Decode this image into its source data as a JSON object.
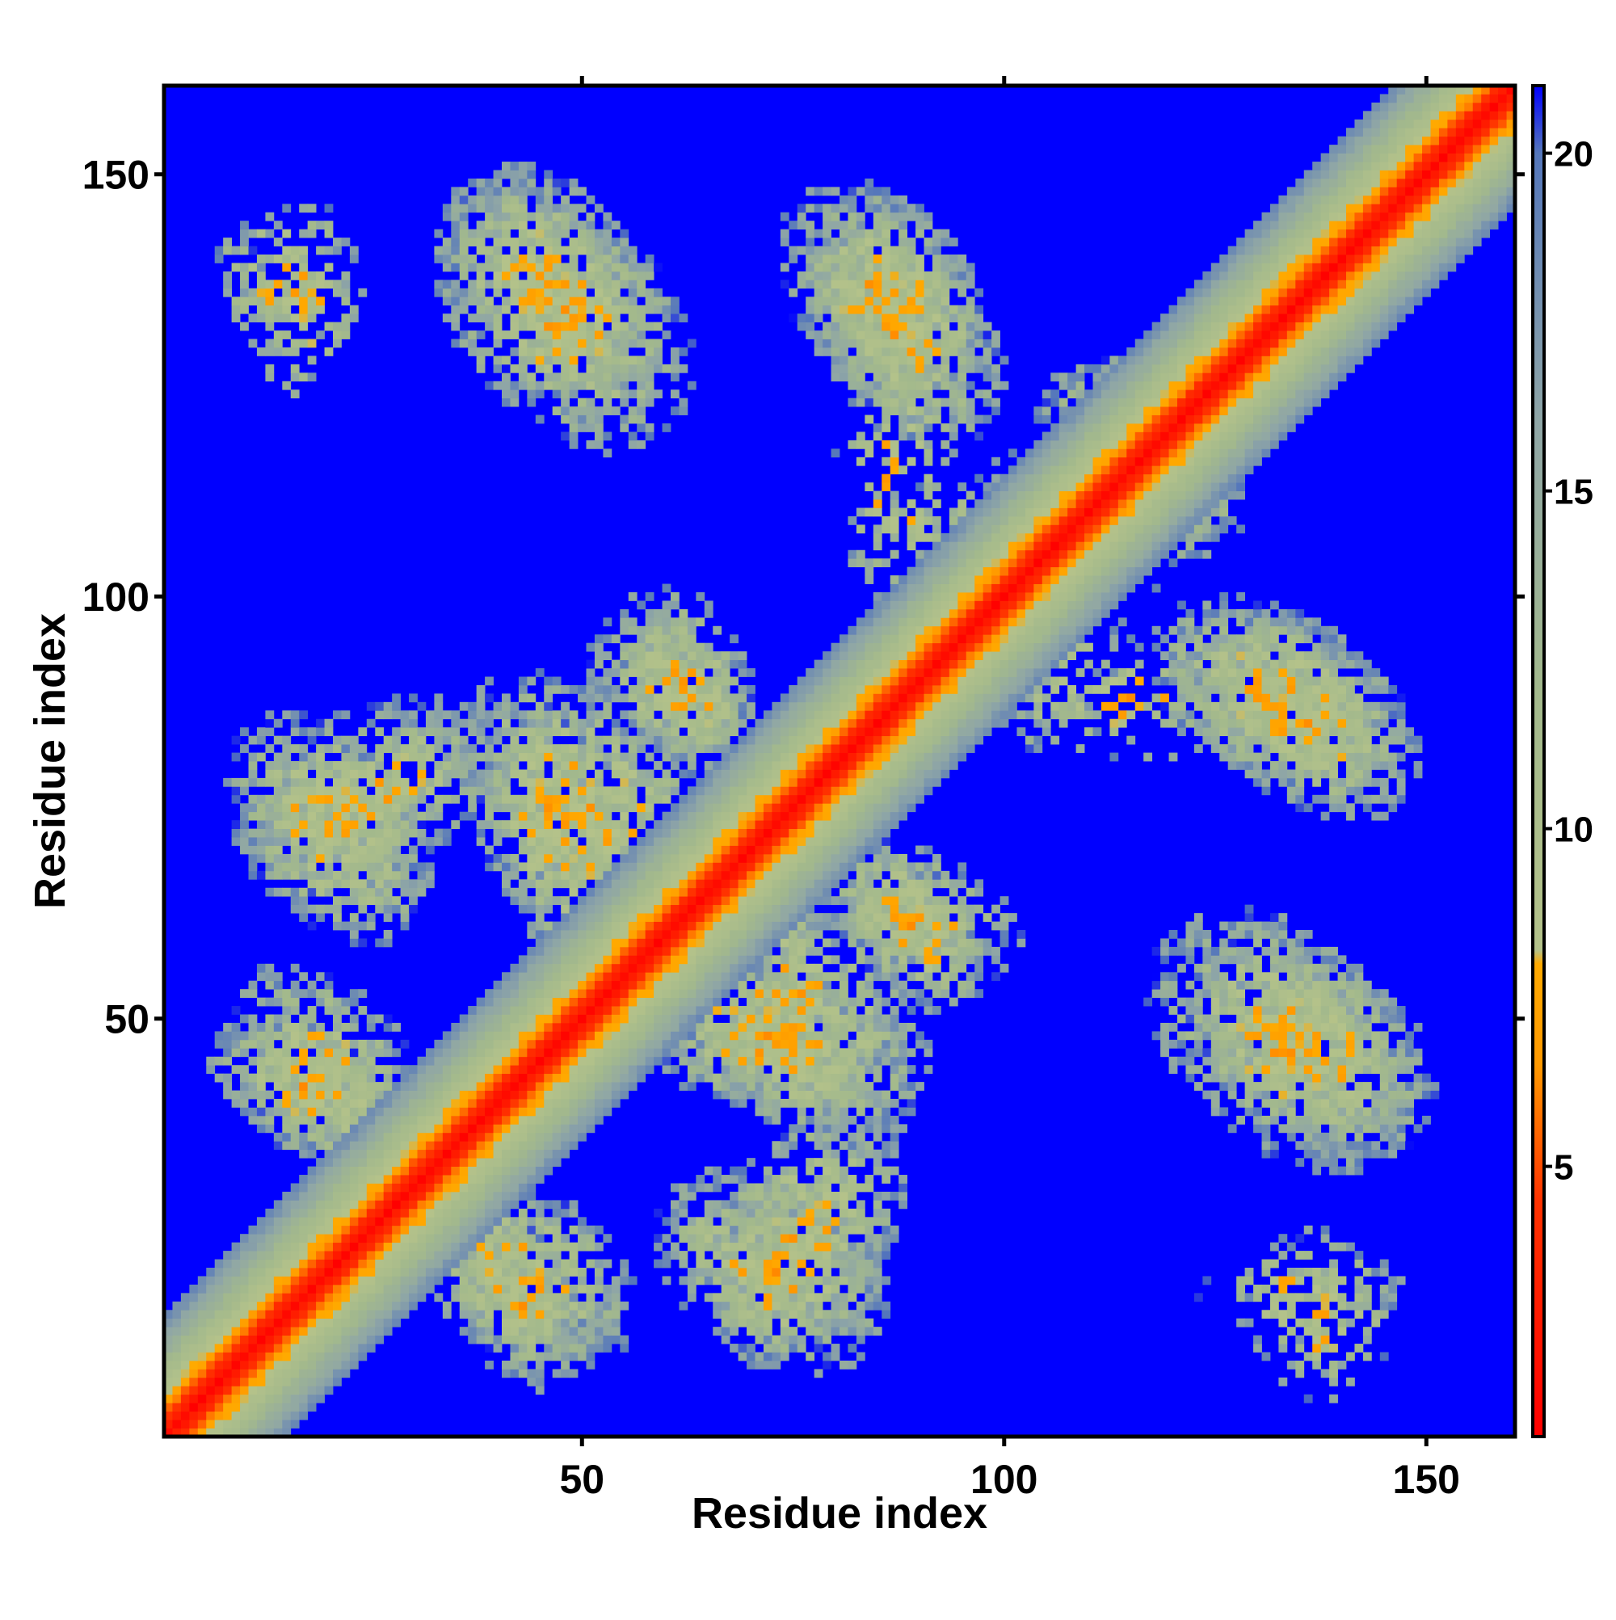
{
  "chart_data": {
    "type": "heatmap",
    "title": "",
    "xlabel": "Residue index",
    "ylabel": "Residue index",
    "n_residues": 160,
    "xlim": [
      1,
      160
    ],
    "ylim": [
      1,
      160
    ],
    "x_ticks": [
      50,
      100,
      150
    ],
    "y_ticks": [
      50,
      100,
      150
    ],
    "colorbar": {
      "range": [
        1,
        21
      ],
      "ticks": [
        5,
        10,
        15,
        20
      ],
      "stops": [
        {
          "value": 1,
          "color": "#ff0000"
        },
        {
          "value": 4.5,
          "color": "#ff3300"
        },
        {
          "value": 6.5,
          "color": "#ff9900"
        },
        {
          "value": 8,
          "color": "#ffaa00"
        },
        {
          "value": 8.2,
          "color": "#b4c28a"
        },
        {
          "value": 12,
          "color": "#a3b98c"
        },
        {
          "value": 16,
          "color": "#8fa6a6"
        },
        {
          "value": 20,
          "color": "#5577bb"
        },
        {
          "value": 21,
          "color": "#0000ff"
        }
      ]
    },
    "background_color": "#0000ff",
    "diagonal_band": {
      "core_width": 3,
      "band_halfwidth": 14
    },
    "contact_regions": [
      {
        "x": [
          30,
          63
        ],
        "y": [
          118,
          155
        ],
        "orientation": "anti"
      },
      {
        "x": [
          73,
          103
        ],
        "y": [
          113,
          152
        ],
        "orientation": "anti"
      },
      {
        "x": [
          117,
          153
        ],
        "y": [
          70,
          102
        ],
        "orientation": "anti"
      },
      {
        "x": [
          113,
          154
        ],
        "y": [
          28,
          67
        ],
        "orientation": "anti"
      },
      {
        "x": [
          5,
          44
        ],
        "y": [
          62,
          91
        ],
        "orientation": "parallel"
      },
      {
        "x": [
          30,
          72
        ],
        "y": [
          56,
          95
        ],
        "orientation": "anti"
      },
      {
        "x": [
          52,
          73
        ],
        "y": [
          75,
          105
        ],
        "orientation": "anti"
      },
      {
        "x": [
          78,
          100
        ],
        "y": [
          48,
          73
        ],
        "orientation": "anti"
      },
      {
        "x": [
          52,
          92
        ],
        "y": [
          34,
          60
        ],
        "orientation": "anti"
      },
      {
        "x": [
          3,
          31
        ],
        "y": [
          32,
          52
        ],
        "orientation": "anti"
      },
      {
        "x": [
          26,
          60
        ],
        "y": [
          5,
          35
        ],
        "orientation": "anti"
      },
      {
        "x": [
          55,
          90
        ],
        "y": [
          5,
          35
        ],
        "orientation": "anti"
      },
      {
        "x": [
          100,
          132
        ],
        "y": [
          102,
          128
        ],
        "orientation": "anti"
      },
      {
        "x": [
          5,
          25
        ],
        "y": [
          128,
          147
        ],
        "orientation": "sparse"
      },
      {
        "x": [
          123,
          148
        ],
        "y": [
          10,
          24
        ],
        "orientation": "sparse"
      },
      {
        "x": [
          80,
          120
        ],
        "y": [
          95,
          115
        ],
        "orientation": "sparse"
      },
      {
        "x": [
          98,
          130
        ],
        "y": [
          80,
          95
        ],
        "orientation": "sparse"
      }
    ]
  }
}
